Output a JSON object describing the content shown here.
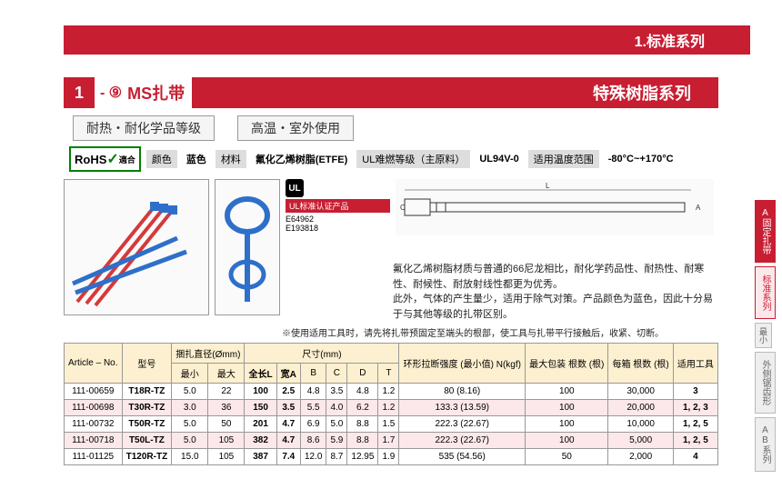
{
  "banner": {
    "text": "1.标准系列"
  },
  "title": {
    "num": "1",
    "sub": "- ⑨",
    "main": "MS扎带",
    "right": "特殊树脂系列"
  },
  "tags": [
    "耐热・耐化学品等级",
    "高温・室外使用"
  ],
  "specs": {
    "rohs": "RoHS",
    "rohs_suffix": "適合",
    "color_label": "颜色",
    "color_val": "蓝色",
    "material_label": "材料",
    "material_val": "氟化乙烯树脂(ETFE)",
    "ul_label": "UL难燃等级（主原料）",
    "ul_val": "UL94V-0",
    "temp_label": "适用温度范围",
    "temp_val": "-80°C~+170°C"
  },
  "ul_block": {
    "badge": "UL标准认证产品",
    "codes": [
      "E64962",
      "E193818"
    ]
  },
  "desc": [
    "氟化乙烯树脂材质与普通的66尼龙相比，耐化学药品性、耐热性、耐寒性、耐候性、耐放射线性都更为优秀。",
    "此外，气体的产生量少，适用于除气对策。产品颜色为蓝色，因此十分易于与其他等级的扎带区别。"
  ],
  "note": "※使用适用工具时，请先将扎带预固定至端头的根部，使工具与扎带平行接触后，收紧、切断。",
  "table": {
    "head_top": [
      "Article – No.",
      "型号",
      "捆扎直径(Ømm)",
      "尺寸(mm)",
      "环形拉断强度\n(最小值)\nN(kgf)",
      "最大包装\n根数\n(根)",
      "每箱\n根数\n(根)",
      "适用工具"
    ],
    "head_dia": [
      "最小",
      "最大"
    ],
    "head_dim": [
      "全长L",
      "宽A",
      "B",
      "C",
      "D",
      "T"
    ],
    "rows": [
      [
        "111-00659",
        "T18R-TZ",
        "5.0",
        "22",
        "100",
        "2.5",
        "4.8",
        "3.5",
        "4.8",
        "1.2",
        "80 (8.16)",
        "100",
        "30,000",
        "3"
      ],
      [
        "111-00698",
        "T30R-TZ",
        "3.0",
        "36",
        "150",
        "3.5",
        "5.5",
        "4.0",
        "6.2",
        "1.2",
        "133.3 (13.59)",
        "100",
        "20,000",
        "1, 2, 3"
      ],
      [
        "111-00732",
        "T50R-TZ",
        "5.0",
        "50",
        "201",
        "4.7",
        "6.9",
        "5.0",
        "8.8",
        "1.5",
        "222.3 (22.67)",
        "100",
        "10,000",
        "1, 2, 5"
      ],
      [
        "111-00718",
        "T50L-TZ",
        "5.0",
        "105",
        "382",
        "4.7",
        "8.6",
        "5.9",
        "8.8",
        "1.7",
        "222.3 (22.67)",
        "100",
        "5,000",
        "1, 2, 5"
      ],
      [
        "111-01125",
        "T120R-TZ",
        "15.0",
        "105",
        "387",
        "7.4",
        "12.0",
        "8.7",
        "12.95",
        "1.9",
        "535 (54.56)",
        "50",
        "2,000",
        "4"
      ]
    ]
  },
  "side": [
    "A固定扎带",
    "标准系列",
    "最小",
    "外侧锯齿形",
    "AB系列"
  ],
  "colors": {
    "red": "#c81e32",
    "cream": "#fdf0d0",
    "pink": "#fce8ea",
    "blue_tie": "#2e6fc9",
    "red_tie": "#d43a3a"
  }
}
